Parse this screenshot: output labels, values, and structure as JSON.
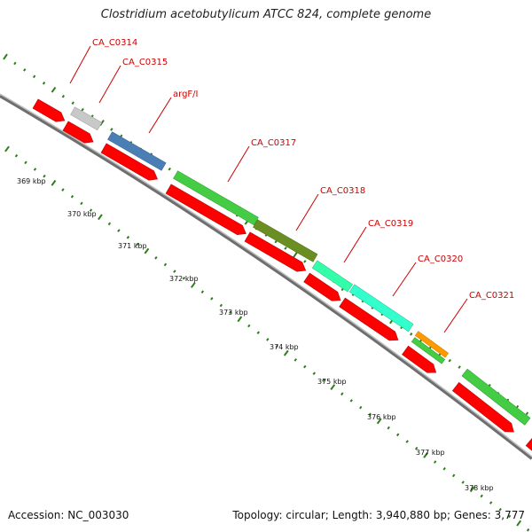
{
  "title": "Clostridium acetobutylicum ATCC 824, complete genome",
  "accession": "Accession: NC_003030",
  "topology": "Topology: circular; Length: 3,940,880 bp; Genes: 3,777",
  "colors": {
    "cds": "#ff0000",
    "backbone": "#8a8a8a",
    "tick": "#2e7d1a",
    "label": "#cc0000"
  },
  "kbp_labels": [
    "369 kbp",
    "370 kbp",
    "371 kbp",
    "372 kbp",
    "373 kbp",
    "374 kbp",
    "375 kbp",
    "376 kbp",
    "377 kbp",
    "378 kbp"
  ],
  "gene_labels": [
    "CA_C0314",
    "CA_C0315",
    "argF/I",
    "CA_C0317",
    "CA_C0318",
    "CA_C0319",
    "CA_C0320",
    "CA_C0321"
  ],
  "cog_colors": [
    "#c0c0c0",
    "#4a7fb5",
    "#44cc44",
    "#6b8e23",
    "#33ffaa",
    "#33ffcc",
    "#ff9900",
    "#44cc44",
    "#44cc44"
  ]
}
